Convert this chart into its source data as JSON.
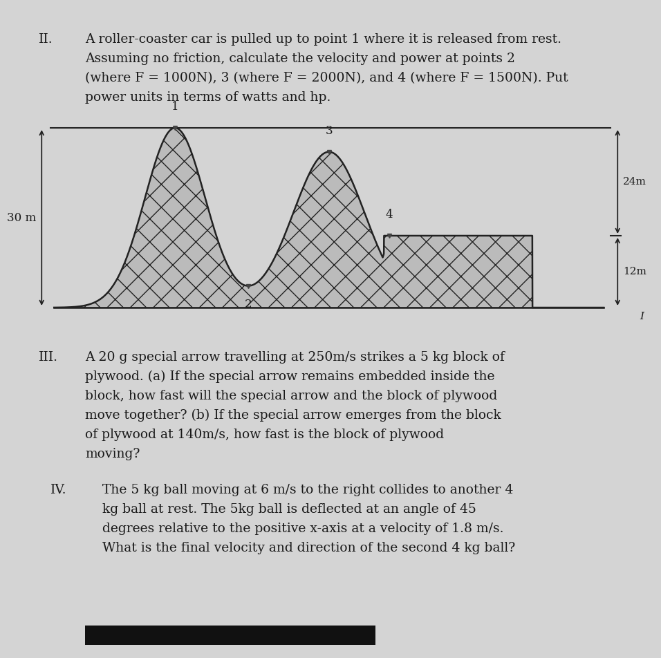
{
  "bg_color": "#d4d4d4",
  "text_color": "#1a1a1a",
  "fig_width": 9.28,
  "fig_height": 9.32,
  "section_II_label": "II.",
  "section_III_label": "III.",
  "section_IV_label": "IV.",
  "lines_II": [
    "A roller-coaster car is pulled up to point 1 where it is released from rest.",
    "Assuming no friction, calculate the velocity and power at points 2",
    "(where F = 1000N), 3 (where F = 2000N), and 4 (where F = 1500N). Put",
    "power units in terms of watts and hp."
  ],
  "lines_III": [
    "A 20 g special arrow travelling at 250m/s strikes a 5 kg block of",
    "plywood. (a) If the special arrow remains embedded inside the",
    "block, how fast will the special arrow and the block of plywood",
    "move together? (b) If the special arrow emerges from the block",
    "of plywood at 140m/s, how fast is the block of plywood",
    "moving?"
  ],
  "lines_IV": [
    "The 5 kg ball moving at 6 m/s to the right collides to another 4",
    "kg ball at rest. The 5kg ball is deflected at an angle of 45",
    "degrees relative to the positive x-axis at a velocity of 1.8 m/s.",
    "What is the final velocity and direction of the second 4 kg ball?"
  ],
  "label_30m": "30 m",
  "label_24m": "24m",
  "label_12m": "12m",
  "roman_numeral_I": "I",
  "hatch_pattern": "x",
  "fill_color": "#bbbbbb",
  "edge_color": "#222222",
  "bottom_bar_color": "#111111"
}
